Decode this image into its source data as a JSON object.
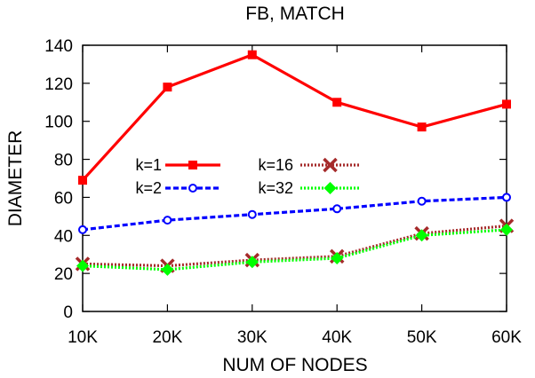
{
  "chart_data": {
    "type": "line",
    "title": "FB, MATCH",
    "xlabel": "NUM OF NODES",
    "ylabel": "DIAMETER",
    "categories": [
      "10K",
      "20K",
      "30K",
      "40K",
      "50K",
      "60K"
    ],
    "ylim": [
      0,
      140
    ],
    "yticks": [
      0,
      20,
      40,
      60,
      80,
      100,
      120,
      140
    ],
    "grid": false,
    "legend_position": "center-left",
    "series": [
      {
        "name": "k=1",
        "values": [
          69,
          118,
          135,
          110,
          97,
          109
        ],
        "color": "#ff0000",
        "style": "solid",
        "marker": "square"
      },
      {
        "name": "k=2",
        "values": [
          43,
          48,
          51,
          54,
          58,
          60
        ],
        "color": "#0000ff",
        "style": "dashed",
        "marker": "circle"
      },
      {
        "name": "k=16",
        "values": [
          25,
          24,
          27,
          29,
          41,
          45
        ],
        "color": "#a52a2a",
        "style": "dotted",
        "marker": "x"
      },
      {
        "name": "k=32",
        "values": [
          24,
          22,
          26,
          28,
          40,
          43
        ],
        "color": "#00ff00",
        "style": "dotted",
        "marker": "diamond"
      }
    ]
  }
}
